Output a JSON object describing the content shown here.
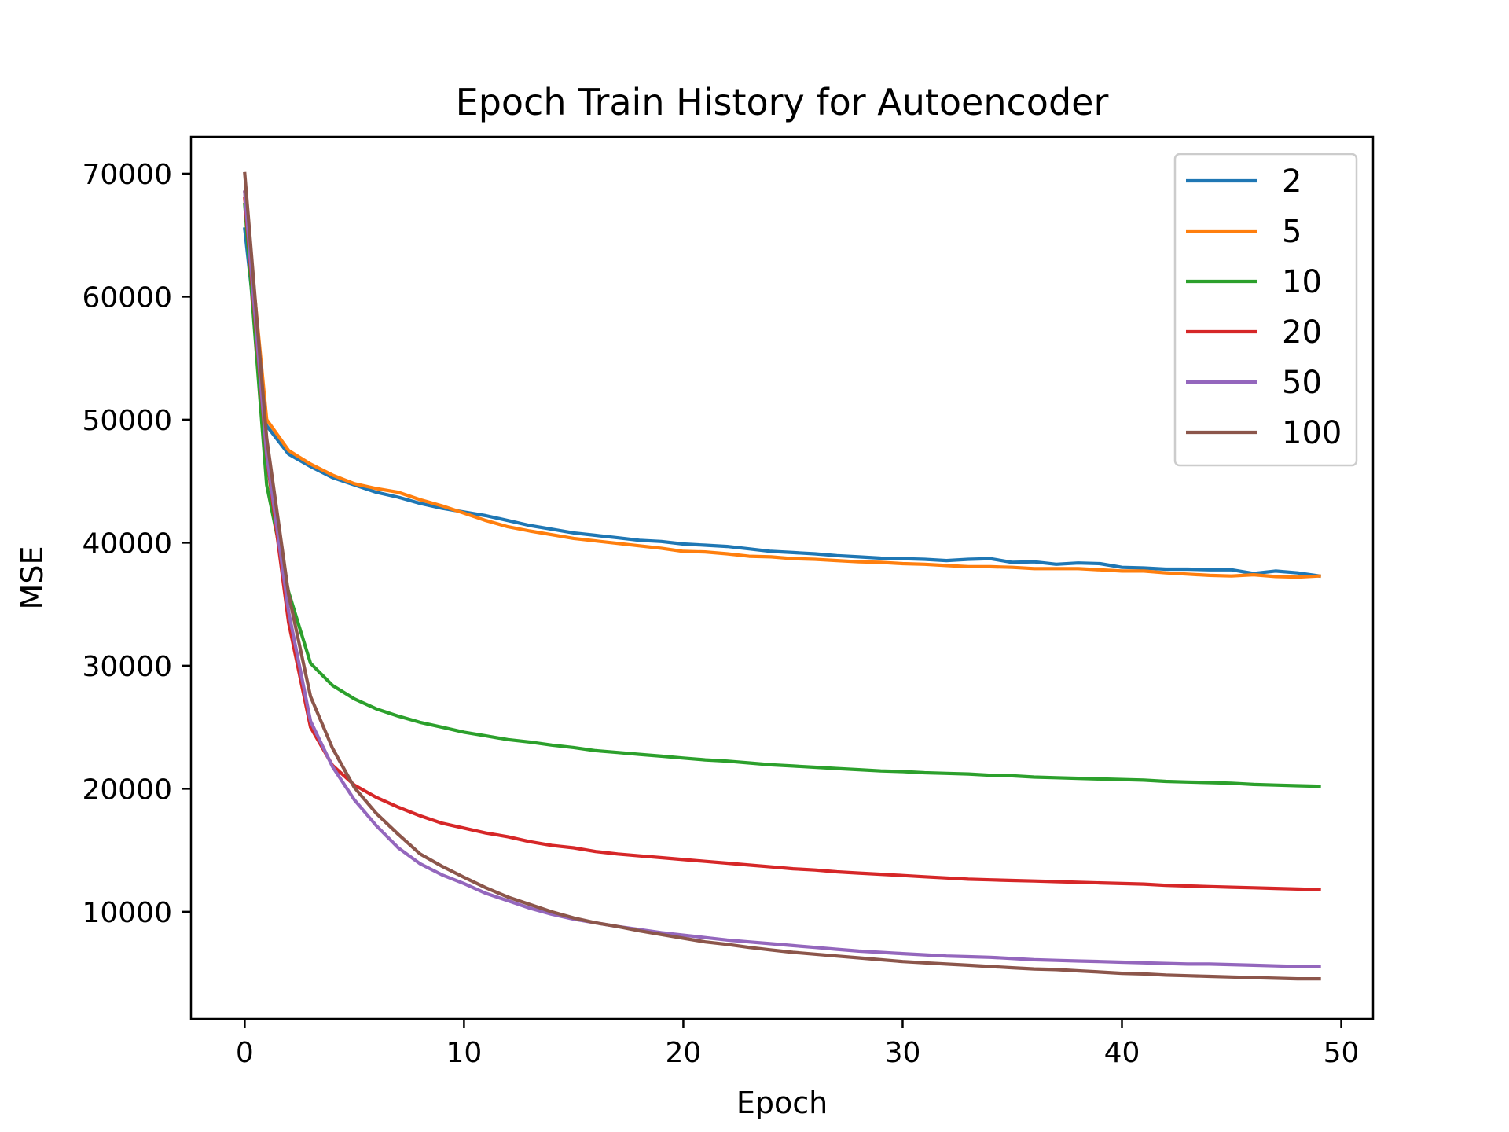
{
  "chart_data": {
    "type": "line",
    "title": "Epoch Train History for Autoencoder",
    "xlabel": "Epoch",
    "ylabel": "MSE",
    "xlim": [
      -2.45,
      51.45
    ],
    "ylim": [
      1300,
      73000
    ],
    "xticks": [
      0,
      10,
      20,
      30,
      40,
      50
    ],
    "yticks": [
      10000,
      20000,
      30000,
      40000,
      50000,
      60000,
      70000
    ],
    "grid": false,
    "legend_position": "top-right",
    "series": [
      {
        "name": "2",
        "color": "#1f77b4",
        "values": [
          65500,
          49500,
          47200,
          46200,
          45300,
          44700,
          44100,
          43700,
          43200,
          42800,
          42500,
          42200,
          41800,
          41400,
          41100,
          40800,
          40600,
          40400,
          40200,
          40100,
          39900,
          39800,
          39700,
          39500,
          39300,
          39200,
          39100,
          38950,
          38850,
          38750,
          38700,
          38650,
          38550,
          38650,
          38700,
          38400,
          38450,
          38250,
          38350,
          38300,
          38000,
          37950,
          37850,
          37850,
          37800,
          37800,
          37500,
          37700,
          37550,
          37300
        ]
      },
      {
        "name": "5",
        "color": "#ff7f0e",
        "values": [
          68500,
          50000,
          47500,
          46400,
          45500,
          44800,
          44400,
          44100,
          43500,
          43000,
          42400,
          41800,
          41300,
          40950,
          40650,
          40350,
          40150,
          39950,
          39750,
          39550,
          39300,
          39250,
          39100,
          38900,
          38850,
          38700,
          38650,
          38550,
          38450,
          38400,
          38300,
          38250,
          38150,
          38050,
          38050,
          38000,
          37900,
          37900,
          37900,
          37800,
          37700,
          37700,
          37550,
          37450,
          37350,
          37300,
          37400,
          37250,
          37200,
          37300
        ]
      },
      {
        "name": "10",
        "color": "#2ca02c",
        "values": [
          67500,
          44700,
          36000,
          30200,
          28400,
          27300,
          26500,
          25900,
          25400,
          25000,
          24600,
          24300,
          24000,
          23800,
          23550,
          23350,
          23100,
          22950,
          22800,
          22650,
          22500,
          22350,
          22250,
          22100,
          21950,
          21850,
          21750,
          21650,
          21550,
          21450,
          21400,
          21300,
          21250,
          21200,
          21100,
          21050,
          20950,
          20900,
          20850,
          20800,
          20750,
          20700,
          20600,
          20550,
          20500,
          20450,
          20350,
          20300,
          20250,
          20200
        ]
      },
      {
        "name": "20",
        "color": "#d62728",
        "values": [
          68000,
          47000,
          33500,
          25000,
          21900,
          20300,
          19300,
          18500,
          17800,
          17200,
          16800,
          16400,
          16100,
          15700,
          15400,
          15200,
          14900,
          14700,
          14550,
          14400,
          14250,
          14100,
          13950,
          13800,
          13650,
          13500,
          13400,
          13250,
          13150,
          13050,
          12950,
          12850,
          12750,
          12650,
          12600,
          12550,
          12500,
          12450,
          12400,
          12350,
          12300,
          12250,
          12150,
          12100,
          12050,
          12000,
          11950,
          11900,
          11850,
          11800
        ]
      },
      {
        "name": "50",
        "color": "#9467bd",
        "values": [
          68500,
          47200,
          34400,
          25500,
          21800,
          19100,
          17000,
          15200,
          13900,
          13000,
          12300,
          11500,
          10900,
          10300,
          9800,
          9400,
          9100,
          8800,
          8550,
          8300,
          8100,
          7900,
          7700,
          7550,
          7400,
          7250,
          7100,
          6950,
          6800,
          6700,
          6600,
          6500,
          6400,
          6350,
          6300,
          6200,
          6100,
          6050,
          6000,
          5950,
          5900,
          5850,
          5800,
          5750,
          5750,
          5700,
          5650,
          5600,
          5550,
          5550
        ]
      },
      {
        "name": "100",
        "color": "#8c564b",
        "values": [
          70000,
          48500,
          35800,
          27500,
          23300,
          20100,
          18000,
          16300,
          14700,
          13700,
          12800,
          11950,
          11200,
          10600,
          10000,
          9500,
          9100,
          8800,
          8450,
          8150,
          7850,
          7550,
          7350,
          7100,
          6900,
          6700,
          6550,
          6400,
          6250,
          6100,
          5950,
          5850,
          5750,
          5650,
          5550,
          5450,
          5350,
          5300,
          5200,
          5100,
          5000,
          4950,
          4850,
          4800,
          4750,
          4700,
          4650,
          4600,
          4550,
          4550
        ]
      }
    ]
  }
}
